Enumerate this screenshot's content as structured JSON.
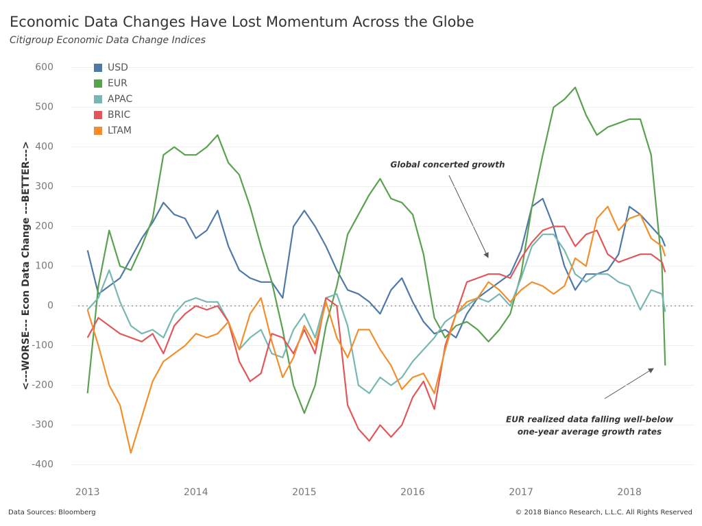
{
  "chart_data": {
    "type": "line",
    "title": "Economic Data Changes Have Lost Momentum Across the Globe",
    "subtitle": "Citigroup Economic Data Change Indices",
    "y_label": "<---WORSE--- Econ Data Change ---BETTER--->",
    "annotations": [
      "Global concerted growth",
      "EUR realized data falling well-below",
      "one-year average growth rates"
    ],
    "source": "Data Sources: Bloomberg",
    "copyright": "© 2018 Bianco Research, L.L.C. All Rights Reserved",
    "grid": true,
    "legend": "top-left",
    "xlim": [
      2012.85,
      2018.6
    ],
    "xticks": [
      2013,
      2014,
      2015,
      2016,
      2017,
      2018
    ],
    "ylim": [
      -430,
      620
    ],
    "yticks": [
      -400,
      -300,
      -200,
      -100,
      0,
      100,
      200,
      300,
      400,
      500,
      600
    ],
    "x": [
      2013.0,
      2013.1,
      2013.2,
      2013.3,
      2013.4,
      2013.5,
      2013.6,
      2013.7,
      2013.8,
      2013.9,
      2014.0,
      2014.1,
      2014.2,
      2014.3,
      2014.4,
      2014.5,
      2014.6,
      2014.7,
      2014.8,
      2014.9,
      2015.0,
      2015.1,
      2015.2,
      2015.3,
      2015.4,
      2015.5,
      2015.6,
      2015.7,
      2015.8,
      2015.9,
      2016.0,
      2016.1,
      2016.2,
      2016.3,
      2016.4,
      2016.5,
      2016.6,
      2016.7,
      2016.8,
      2016.9,
      2017.0,
      2017.1,
      2017.2,
      2017.3,
      2017.4,
      2017.5,
      2017.6,
      2017.7,
      2017.8,
      2017.9,
      2018.0,
      2018.1,
      2018.2,
      2018.3,
      2018.33
    ],
    "series": [
      {
        "name": "USD",
        "color": "#4e79a7",
        "values": [
          140,
          30,
          50,
          70,
          120,
          170,
          210,
          260,
          230,
          220,
          170,
          190,
          240,
          150,
          90,
          70,
          60,
          60,
          20,
          200,
          240,
          200,
          150,
          90,
          40,
          30,
          10,
          -20,
          40,
          70,
          10,
          -40,
          -70,
          -60,
          -80,
          -20,
          20,
          40,
          60,
          80,
          140,
          250,
          270,
          200,
          100,
          40,
          80,
          80,
          90,
          130,
          250,
          230,
          200,
          170,
          150
        ]
      },
      {
        "name": "EUR",
        "color": "#59a14f",
        "values": [
          -220,
          50,
          190,
          100,
          90,
          150,
          220,
          380,
          400,
          380,
          380,
          400,
          430,
          360,
          330,
          250,
          150,
          60,
          -60,
          -200,
          -270,
          -200,
          -50,
          50,
          180,
          230,
          280,
          320,
          270,
          260,
          230,
          130,
          -30,
          -80,
          -50,
          -40,
          -60,
          -90,
          -60,
          -20,
          80,
          250,
          380,
          500,
          520,
          550,
          480,
          430,
          450,
          460,
          470,
          470,
          380,
          100,
          -150
        ]
      },
      {
        "name": "APAC",
        "color": "#76b7b2",
        "values": [
          -10,
          20,
          90,
          10,
          -50,
          -70,
          -60,
          -80,
          -20,
          10,
          20,
          10,
          10,
          -40,
          -110,
          -80,
          -60,
          -120,
          -130,
          -60,
          -20,
          -80,
          20,
          30,
          -50,
          -200,
          -220,
          -180,
          -200,
          -180,
          -140,
          -110,
          -80,
          -40,
          -20,
          0,
          20,
          10,
          30,
          0,
          70,
          150,
          180,
          180,
          140,
          80,
          60,
          80,
          80,
          60,
          50,
          -10,
          40,
          30,
          -15
        ]
      },
      {
        "name": "BRIC",
        "color": "#e15759",
        "values": [
          -80,
          -30,
          -50,
          -70,
          -80,
          -90,
          -70,
          -120,
          -50,
          -20,
          0,
          -10,
          0,
          -40,
          -140,
          -190,
          -170,
          -70,
          -80,
          -120,
          -60,
          -120,
          20,
          0,
          -250,
          -310,
          -340,
          -300,
          -330,
          -300,
          -230,
          -190,
          -260,
          -100,
          -20,
          60,
          70,
          80,
          80,
          70,
          120,
          160,
          190,
          200,
          200,
          150,
          180,
          190,
          130,
          110,
          120,
          130,
          130,
          110,
          85
        ]
      },
      {
        "name": "LTAM",
        "color": "#f28e2b",
        "values": [
          -10,
          -100,
          -200,
          -250,
          -370,
          -280,
          -190,
          -140,
          -120,
          -100,
          -70,
          -80,
          -70,
          -40,
          -110,
          -20,
          20,
          -90,
          -180,
          -130,
          -50,
          -100,
          10,
          -80,
          -130,
          -60,
          -60,
          -110,
          -150,
          -210,
          -180,
          -170,
          -220,
          -110,
          -20,
          10,
          20,
          60,
          40,
          10,
          40,
          60,
          50,
          30,
          50,
          120,
          100,
          220,
          250,
          190,
          220,
          230,
          170,
          150,
          125
        ]
      }
    ]
  }
}
